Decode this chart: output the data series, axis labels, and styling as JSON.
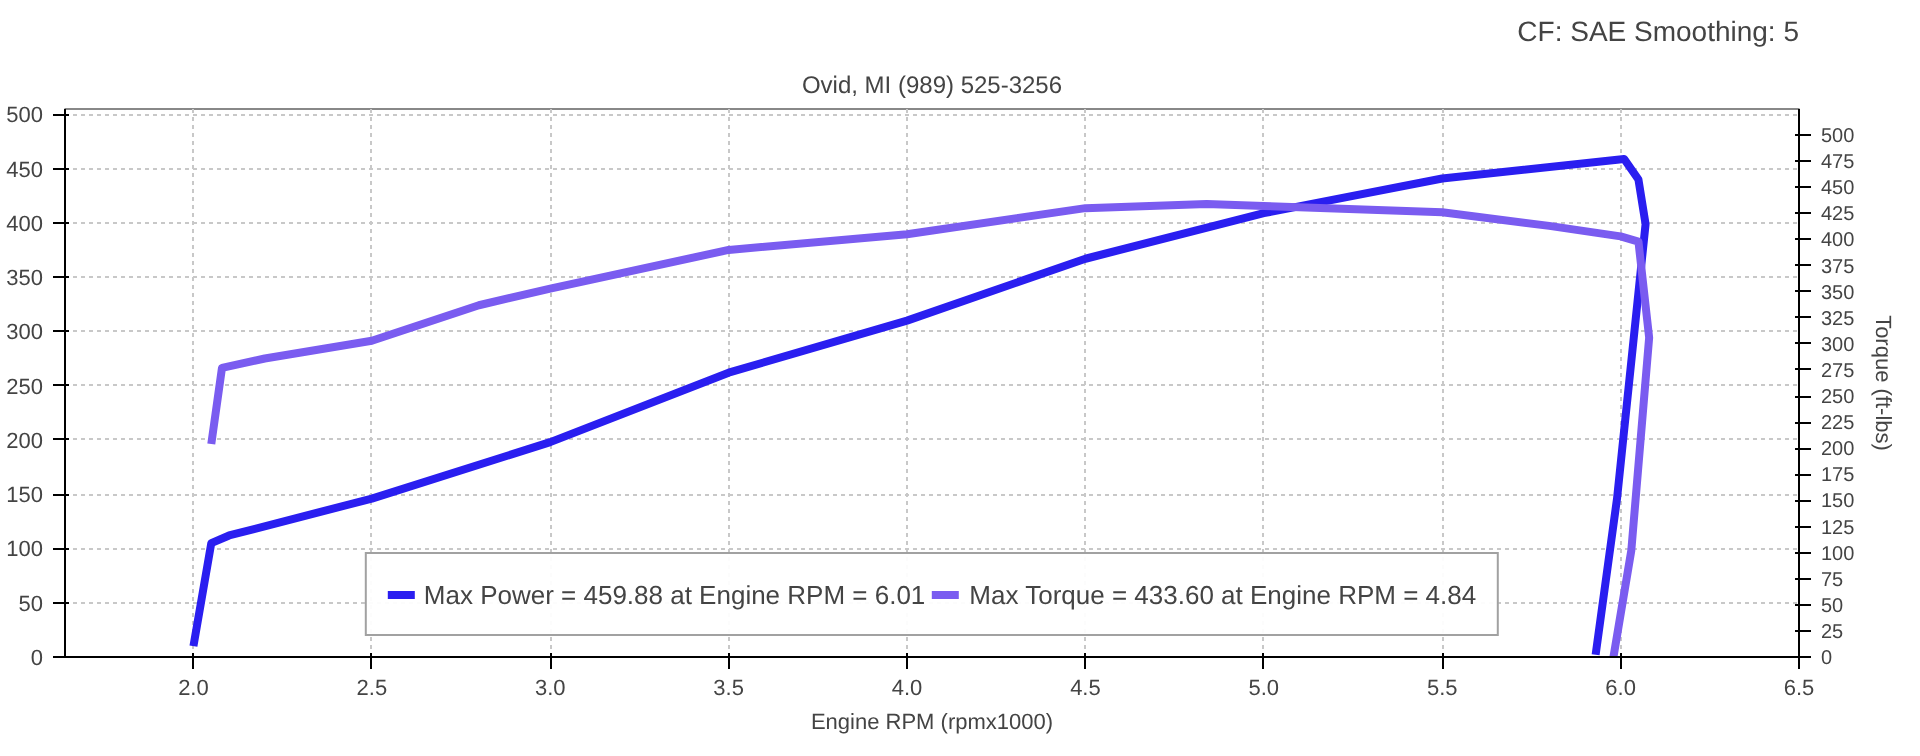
{
  "chart_data": {
    "type": "line",
    "subtitle": "Ovid, MI (989) 525-3256",
    "xlabel": "Engine RPM (rpmx1000)",
    "y2label": "Torque (ft-lbs)",
    "annotations": [
      "CF: SAE Smoothing: 5"
    ],
    "xlim": [
      1.64,
      6.5
    ],
    "xticks": [
      {
        "value": 2,
        "label": "2.0"
      },
      2.5,
      {
        "value": 3,
        "label": "3.0"
      },
      3.5,
      {
        "value": 4,
        "label": "4.0"
      },
      4.5,
      {
        "value": 5,
        "label": "5.0"
      },
      5.5,
      {
        "value": 6,
        "label": "6.0"
      },
      6.5
    ],
    "ylim": [
      0,
      505
    ],
    "yticks": [
      0,
      50,
      100,
      150,
      200,
      250,
      300,
      350,
      400,
      450,
      500
    ],
    "y2lim": [
      0,
      525
    ],
    "y2ticks": [
      0,
      25,
      50,
      75,
      100,
      125,
      150,
      175,
      200,
      225,
      250,
      275,
      300,
      325,
      350,
      375,
      400,
      425,
      450,
      475,
      500
    ],
    "grid": true,
    "legend": "bottom",
    "marker": "none",
    "line_style": "solid",
    "series": [
      {
        "name": "Max Power = 459.88 at Engine RPM = 6.01",
        "color": "#2a1ef0",
        "x": [
          2.0,
          2.05,
          2.1,
          2.5,
          3.0,
          3.5,
          4.0,
          4.5,
          5.0,
          5.5,
          6.01,
          6.05,
          6.07,
          5.99,
          5.93
        ],
        "values": [
          10,
          105,
          112,
          146,
          198,
          262,
          310,
          367,
          409,
          441,
          459,
          440,
          399,
          146,
          2
        ]
      },
      {
        "name": "Max Torque = 433.60 at Engine RPM = 4.84",
        "color": "#7a5cf0",
        "axis": "y2",
        "x": [
          2.05,
          2.08,
          2.2,
          2.5,
          2.8,
          3.0,
          3.5,
          4.0,
          4.5,
          4.84,
          5.0,
          5.5,
          5.8,
          6.0,
          6.05,
          6.08,
          6.03,
          5.98
        ],
        "values": [
          204,
          277,
          286,
          303,
          337,
          353,
          390,
          405,
          430,
          434,
          432,
          426,
          413,
          403,
          398,
          306,
          102,
          0
        ]
      }
    ]
  }
}
